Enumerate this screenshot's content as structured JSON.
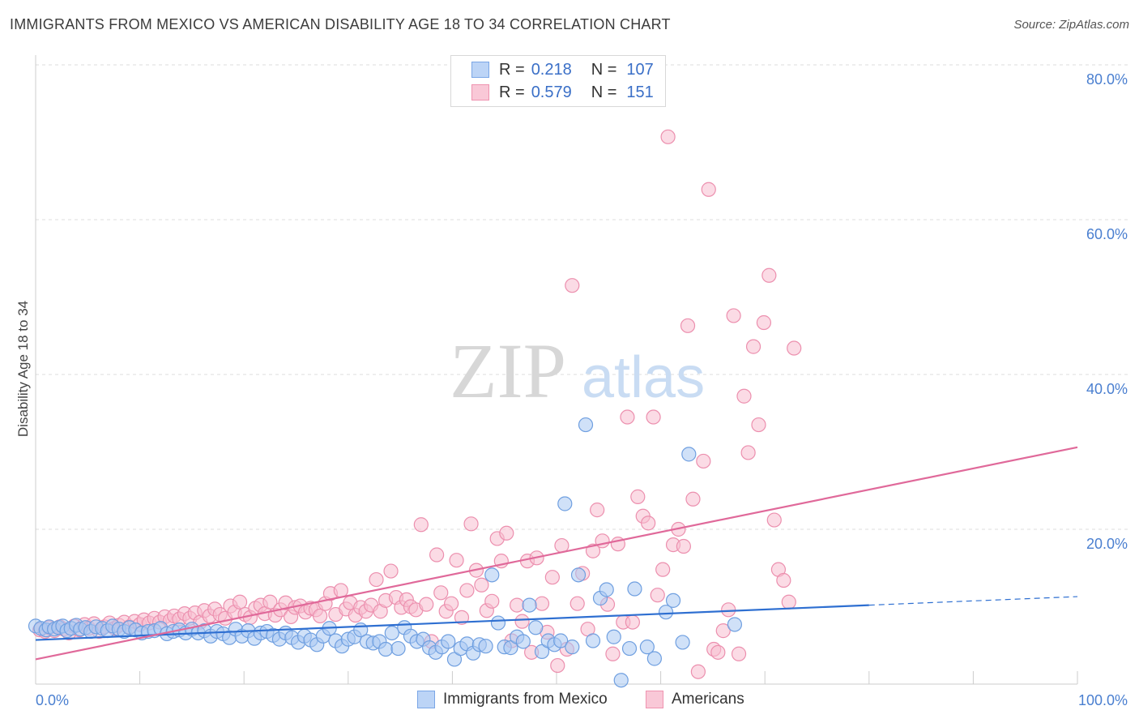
{
  "title": "IMMIGRANTS FROM MEXICO VS AMERICAN DISABILITY AGE 18 TO 34 CORRELATION CHART",
  "source": "Source: ZipAtlas.com",
  "watermark": {
    "zip": "ZIP",
    "atlas": "atlas"
  },
  "legend": {
    "r_label": "R =",
    "n_label": "N =",
    "entries": [
      {
        "r": "0.218",
        "n": "107",
        "fill": "#bcd4f6",
        "stroke": "#7aa6e6"
      },
      {
        "r": "0.579",
        "n": "151",
        "fill": "#f9c8d7",
        "stroke": "#ef93b0"
      }
    ]
  },
  "bottom_legend": [
    "Immigrants from Mexico",
    "Americans"
  ],
  "colors": {
    "blue_fill": "#aac9f3",
    "blue_stroke": "#6f9fe0",
    "blue_line": "#2e6fd1",
    "pink_fill": "#f7bdd0",
    "pink_stroke": "#ec8fae",
    "pink_line": "#e0699a",
    "grid": "#dddddd",
    "tick_text": "#4a7fd0"
  },
  "chart_data": {
    "type": "scatter",
    "title": "IMMIGRANTS FROM MEXICO VS AMERICAN DISABILITY AGE 18 TO 34 CORRELATION CHART",
    "xlabel": "",
    "ylabel": "Disability Age 18 to 34",
    "xlim": [
      0,
      100
    ],
    "ylim": [
      0,
      80
    ],
    "x_tick_labels": [
      "0.0%",
      "100.0%"
    ],
    "y_tick_labels": [
      "20.0%",
      "40.0%",
      "60.0%",
      "80.0%"
    ],
    "y_ticks": [
      20,
      40,
      60,
      80
    ],
    "grid": true,
    "legend_placement": "top-center",
    "series": [
      {
        "name": "Immigrants from Mexico",
        "color": "#aac9f3",
        "trend": {
          "x": [
            0,
            80
          ],
          "y": [
            5.7,
            10.2
          ],
          "dashed_extension_to": [
            100,
            11.3
          ]
        },
        "points": [
          [
            0,
            7.5
          ],
          [
            0.5,
            7.2
          ],
          [
            1,
            7
          ],
          [
            1.3,
            7.4
          ],
          [
            1.8,
            7.1
          ],
          [
            2.2,
            7.3
          ],
          [
            2.6,
            7.5
          ],
          [
            3,
            6.9
          ],
          [
            3.4,
            7.2
          ],
          [
            3.9,
            7.6
          ],
          [
            4.3,
            7.1
          ],
          [
            4.8,
            7.3
          ],
          [
            5.3,
            6.8
          ],
          [
            5.8,
            7.4
          ],
          [
            6.4,
            7.2
          ],
          [
            6.9,
            6.9
          ],
          [
            7.4,
            7.5
          ],
          [
            8,
            7.1
          ],
          [
            8.5,
            6.8
          ],
          [
            9,
            7.3
          ],
          [
            9.6,
            7.0
          ],
          [
            10.2,
            6.6
          ],
          [
            10.8,
            6.8
          ],
          [
            11.4,
            6.9
          ],
          [
            12,
            7.2
          ],
          [
            12.6,
            6.5
          ],
          [
            13.2,
            6.8
          ],
          [
            13.8,
            7.0
          ],
          [
            14.4,
            6.6
          ],
          [
            15,
            7.1
          ],
          [
            15.6,
            6.6
          ],
          [
            16.2,
            6.9
          ],
          [
            16.8,
            6.2
          ],
          [
            17.4,
            6.8
          ],
          [
            18,
            6.5
          ],
          [
            18.6,
            6.0
          ],
          [
            19.2,
            7.1
          ],
          [
            19.8,
            6.2
          ],
          [
            20.4,
            6.9
          ],
          [
            21,
            5.9
          ],
          [
            21.6,
            6.6
          ],
          [
            22.2,
            6.8
          ],
          [
            22.8,
            6.3
          ],
          [
            23.4,
            5.8
          ],
          [
            24,
            6.6
          ],
          [
            24.6,
            6.0
          ],
          [
            25.2,
            5.4
          ],
          [
            25.8,
            6.2
          ],
          [
            26.4,
            5.7
          ],
          [
            27,
            5.1
          ],
          [
            27.6,
            6.2
          ],
          [
            28.2,
            7.2
          ],
          [
            28.8,
            5.6
          ],
          [
            29.4,
            4.9
          ],
          [
            30,
            5.8
          ],
          [
            30.6,
            6.1
          ],
          [
            31.2,
            7.0
          ],
          [
            31.8,
            5.5
          ],
          [
            32.4,
            5.3
          ],
          [
            33,
            5.5
          ],
          [
            33.6,
            4.5
          ],
          [
            34.2,
            6.6
          ],
          [
            34.8,
            4.6
          ],
          [
            35.4,
            7.3
          ],
          [
            36,
            6.2
          ],
          [
            36.6,
            5.5
          ],
          [
            37.2,
            5.8
          ],
          [
            37.8,
            4.7
          ],
          [
            38.4,
            4.1
          ],
          [
            39,
            4.8
          ],
          [
            39.6,
            5.5
          ],
          [
            40.2,
            3.2
          ],
          [
            40.8,
            4.6
          ],
          [
            41.4,
            5.2
          ],
          [
            42,
            4.0
          ],
          [
            42.6,
            5.1
          ],
          [
            43.2,
            4.9
          ],
          [
            43.8,
            14.1
          ],
          [
            44.4,
            7.9
          ],
          [
            45,
            4.8
          ],
          [
            45.6,
            4.7
          ],
          [
            46.2,
            6.1
          ],
          [
            46.8,
            5.5
          ],
          [
            47.4,
            10.2
          ],
          [
            48,
            7.3
          ],
          [
            48.6,
            4.2
          ],
          [
            49.2,
            5.6
          ],
          [
            49.8,
            5.1
          ],
          [
            50.4,
            5.6
          ],
          [
            50.8,
            23.3
          ],
          [
            51.5,
            4.8
          ],
          [
            52.1,
            14.1
          ],
          [
            52.8,
            33.5
          ],
          [
            53.5,
            5.6
          ],
          [
            54.2,
            11.1
          ],
          [
            54.8,
            12.2
          ],
          [
            55.5,
            6.1
          ],
          [
            56.2,
            0.5
          ],
          [
            57,
            4.6
          ],
          [
            57.5,
            12.3
          ],
          [
            58.7,
            4.8
          ],
          [
            59.4,
            3.3
          ],
          [
            60.5,
            9.3
          ],
          [
            61.2,
            10.8
          ],
          [
            62.7,
            29.7
          ],
          [
            67.1,
            7.7
          ],
          [
            62.1,
            5.4
          ]
        ]
      },
      {
        "name": "Americans",
        "color": "#f7bdd0",
        "trend": {
          "x": [
            0,
            100
          ],
          "y": [
            3.2,
            30.6
          ]
        },
        "points": [
          [
            0.4,
            7.0
          ],
          [
            0.9,
            6.8
          ],
          [
            1.3,
            7.3
          ],
          [
            1.8,
            6.9
          ],
          [
            2.3,
            7.4
          ],
          [
            2.7,
            7.1
          ],
          [
            3.2,
            6.6
          ],
          [
            3.7,
            7.5
          ],
          [
            4.2,
            7.0
          ],
          [
            4.7,
            7.7
          ],
          [
            5.1,
            7.2
          ],
          [
            5.6,
            7.8
          ],
          [
            6.1,
            6.8
          ],
          [
            6.6,
            7.4
          ],
          [
            7.1,
            7.9
          ],
          [
            7.6,
            7.2
          ],
          [
            8.0,
            7.6
          ],
          [
            8.5,
            8.0
          ],
          [
            9.0,
            7.4
          ],
          [
            9.5,
            8.1
          ],
          [
            10.0,
            7.7
          ],
          [
            10.4,
            8.3
          ],
          [
            10.9,
            7.9
          ],
          [
            11.4,
            8.5
          ],
          [
            11.9,
            8.0
          ],
          [
            12.4,
            8.7
          ],
          [
            12.9,
            8.2
          ],
          [
            13.3,
            8.8
          ],
          [
            13.8,
            8.4
          ],
          [
            14.3,
            9.1
          ],
          [
            14.8,
            8.5
          ],
          [
            15.3,
            9.2
          ],
          [
            15.8,
            8.0
          ],
          [
            16.2,
            9.5
          ],
          [
            16.7,
            8.8
          ],
          [
            17.2,
            9.7
          ],
          [
            17.7,
            9.0
          ],
          [
            18.2,
            8.5
          ],
          [
            18.7,
            10.1
          ],
          [
            19.1,
            9.3
          ],
          [
            19.6,
            10.6
          ],
          [
            20.1,
            9.0
          ],
          [
            20.6,
            8.6
          ],
          [
            21.1,
            9.8
          ],
          [
            21.6,
            10.2
          ],
          [
            22.0,
            9.1
          ],
          [
            22.5,
            10.6
          ],
          [
            23.0,
            8.9
          ],
          [
            23.5,
            9.6
          ],
          [
            24.0,
            10.5
          ],
          [
            24.5,
            8.7
          ],
          [
            24.9,
            9.9
          ],
          [
            25.4,
            10.1
          ],
          [
            25.9,
            9.3
          ],
          [
            26.4,
            9.8
          ],
          [
            26.9,
            9.6
          ],
          [
            27.3,
            8.8
          ],
          [
            27.8,
            10.4
          ],
          [
            28.3,
            11.7
          ],
          [
            28.8,
            9.0
          ],
          [
            29.3,
            12.1
          ],
          [
            29.8,
            9.7
          ],
          [
            30.2,
            10.5
          ],
          [
            30.7,
            8.9
          ],
          [
            31.2,
            9.9
          ],
          [
            31.7,
            9.4
          ],
          [
            32.2,
            10.2
          ],
          [
            32.7,
            13.5
          ],
          [
            33.1,
            9.4
          ],
          [
            33.6,
            10.8
          ],
          [
            34.1,
            14.6
          ],
          [
            34.6,
            11.2
          ],
          [
            35.1,
            9.9
          ],
          [
            35.6,
            10.9
          ],
          [
            36.0,
            10.0
          ],
          [
            36.5,
            9.6
          ],
          [
            37.0,
            20.6
          ],
          [
            37.5,
            10.3
          ],
          [
            38.0,
            5.5
          ],
          [
            38.5,
            16.7
          ],
          [
            38.9,
            11.8
          ],
          [
            39.4,
            9.4
          ],
          [
            39.9,
            10.4
          ],
          [
            40.4,
            16.0
          ],
          [
            40.9,
            8.6
          ],
          [
            41.4,
            12.1
          ],
          [
            41.8,
            20.7
          ],
          [
            42.3,
            14.7
          ],
          [
            42.8,
            12.8
          ],
          [
            43.3,
            9.5
          ],
          [
            43.8,
            10.7
          ],
          [
            44.3,
            18.8
          ],
          [
            44.7,
            15.9
          ],
          [
            45.2,
            19.5
          ],
          [
            45.7,
            5.6
          ],
          [
            46.2,
            10.2
          ],
          [
            46.7,
            8.1
          ],
          [
            47.2,
            15.9
          ],
          [
            47.6,
            4.1
          ],
          [
            48.1,
            16.3
          ],
          [
            48.6,
            10.4
          ],
          [
            49.1,
            6.7
          ],
          [
            49.6,
            13.8
          ],
          [
            50.1,
            2.4
          ],
          [
            50.5,
            17.9
          ],
          [
            51.0,
            4.5
          ],
          [
            51.5,
            51.5
          ],
          [
            52.0,
            10.4
          ],
          [
            52.5,
            14.3
          ],
          [
            53.0,
            7.1
          ],
          [
            53.5,
            17.2
          ],
          [
            53.9,
            22.5
          ],
          [
            54.4,
            18.5
          ],
          [
            54.9,
            10.3
          ],
          [
            55.4,
            3.9
          ],
          [
            55.9,
            18.1
          ],
          [
            56.4,
            8.0
          ],
          [
            56.8,
            34.5
          ],
          [
            57.3,
            8.0
          ],
          [
            57.8,
            24.2
          ],
          [
            58.3,
            21.7
          ],
          [
            58.8,
            20.8
          ],
          [
            59.3,
            34.5
          ],
          [
            59.7,
            11.5
          ],
          [
            60.2,
            14.8
          ],
          [
            60.7,
            70.7
          ],
          [
            61.2,
            18.0
          ],
          [
            61.7,
            20.0
          ],
          [
            62.2,
            17.8
          ],
          [
            62.6,
            46.3
          ],
          [
            63.1,
            23.9
          ],
          [
            63.6,
            1.6
          ],
          [
            64.1,
            28.8
          ],
          [
            64.6,
            63.9
          ],
          [
            65.1,
            4.5
          ],
          [
            65.5,
            4.1
          ],
          [
            66.0,
            6.9
          ],
          [
            66.5,
            9.6
          ],
          [
            67.0,
            47.6
          ],
          [
            67.5,
            3.9
          ],
          [
            68.0,
            37.2
          ],
          [
            68.4,
            29.9
          ],
          [
            68.9,
            43.6
          ],
          [
            69.4,
            33.5
          ],
          [
            69.9,
            46.7
          ],
          [
            70.4,
            52.8
          ],
          [
            70.9,
            21.2
          ],
          [
            71.3,
            14.8
          ],
          [
            71.8,
            13.4
          ],
          [
            72.3,
            10.6
          ],
          [
            72.8,
            43.4
          ]
        ]
      }
    ]
  }
}
